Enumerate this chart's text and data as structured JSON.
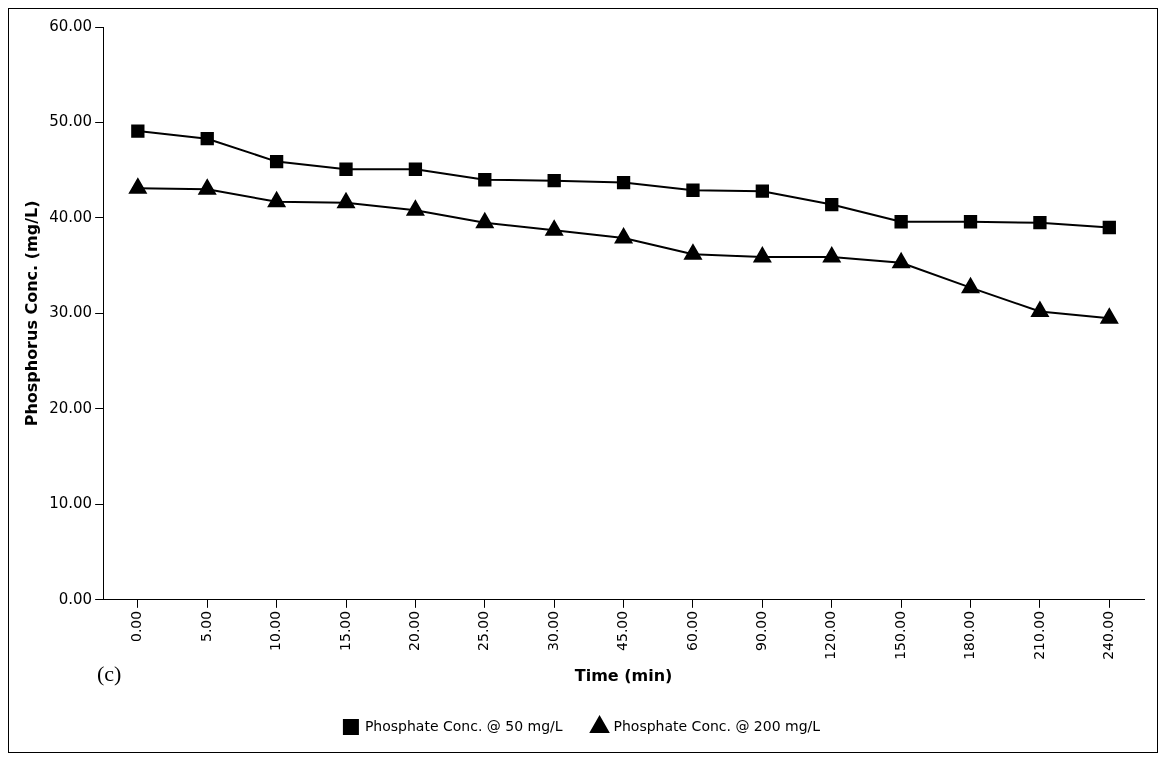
{
  "chart_data": {
    "type": "line",
    "xlabel": "Time (min)",
    "ylabel": "Phosphorus Conc. (mg/L)",
    "annotations": [
      "(c)"
    ],
    "categories": [
      "0.00",
      "5.00",
      "10.00",
      "15.00",
      "20.00",
      "25.00",
      "30.00",
      "45.00",
      "60.00",
      "90.00",
      "120.00",
      "150.00",
      "180.00",
      "210.00",
      "240.00"
    ],
    "series": [
      {
        "name": "Phosphate Conc. @ 50 mg/L",
        "color": "#000000",
        "marker": "square",
        "values": [
          49.1,
          48.3,
          45.9,
          45.1,
          45.1,
          44.0,
          43.9,
          43.7,
          42.9,
          42.8,
          41.4,
          39.6,
          39.6,
          39.5,
          39.0
        ]
      },
      {
        "name": "Phosphate Conc. @ 200 mg/L",
        "color": "#000000",
        "marker": "triangle",
        "values": [
          43.1,
          43.0,
          41.7,
          41.6,
          40.8,
          39.5,
          38.7,
          37.9,
          36.2,
          35.9,
          35.9,
          35.3,
          32.7,
          30.2,
          29.5
        ]
      }
    ],
    "ylim": [
      0,
      60
    ],
    "yticks": [
      {
        "value": 0,
        "label": "0.00"
      },
      {
        "value": 10,
        "label": "10.00"
      },
      {
        "value": 20,
        "label": "20.00"
      },
      {
        "value": 30,
        "label": "30.00"
      },
      {
        "value": 40,
        "label": "40.00"
      },
      {
        "value": 50,
        "label": "50.00"
      },
      {
        "value": 60,
        "label": "60.00"
      }
    ],
    "grid": false,
    "legend": "bottom",
    "line_style": "solid"
  }
}
